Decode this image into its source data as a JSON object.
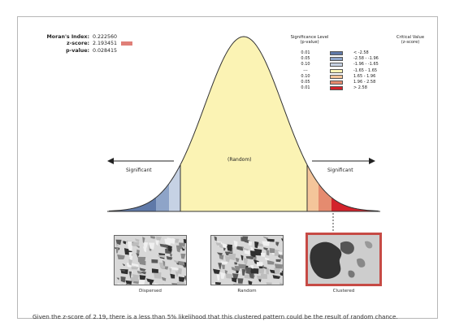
{
  "stats": {
    "morans_label": "Moran's Index:",
    "morans_value": "0.222560",
    "z_label": "z-score:",
    "z_value": "2.193451",
    "p_label": "p-value:",
    "p_value": "0.028415"
  },
  "legend": {
    "title_sig": "Significance Level",
    "title_sig_sub": "(p-value)",
    "title_cv": "Critical Value",
    "title_cv_sub": "(z-score)",
    "rows": [
      {
        "p": "0.01",
        "z": "< -2.58",
        "color": "#5f79a8"
      },
      {
        "p": "0.05",
        "z": "-2.58 - -1.96",
        "color": "#8ea4c8"
      },
      {
        "p": "0.10",
        "z": "-1.96 - -1.65",
        "color": "#c6d2e4"
      },
      {
        "p": "---",
        "z": "-1.65 - 1.65",
        "color": "#fbf3b4"
      },
      {
        "p": "0.10",
        "z": "1.65 - 1.96",
        "color": "#f4c59a"
      },
      {
        "p": "0.05",
        "z": "1.96 - 2.58",
        "color": "#e58b6f"
      },
      {
        "p": "0.01",
        "z": "> 2.58",
        "color": "#d3222b"
      }
    ]
  },
  "curve": {
    "left_label": "Significant",
    "center_label": "(Random)",
    "right_label": "Significant"
  },
  "maps": [
    {
      "label": "Dispersed"
    },
    {
      "label": "Random"
    },
    {
      "label": "Clustered"
    }
  ],
  "caption": "Given the z-score of 2.19, there is a less than 5% likelihood that this clustered pattern could be the result of random chance."
}
